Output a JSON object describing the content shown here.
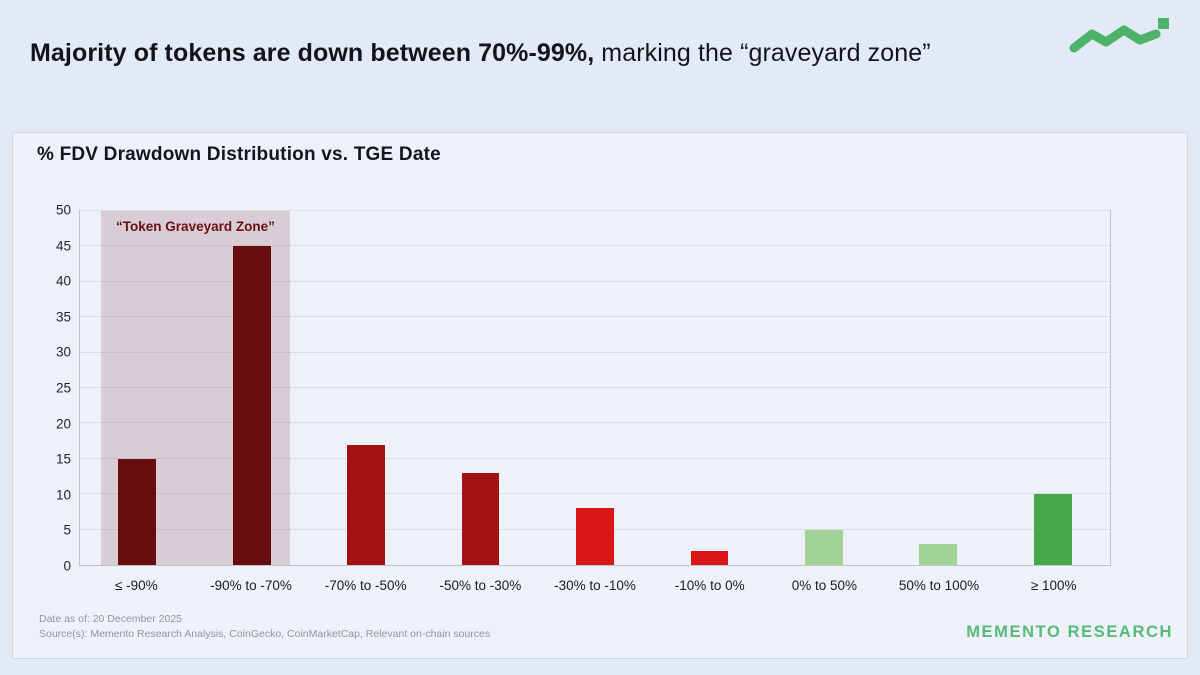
{
  "page": {
    "title_bold": "Majority of tokens are down between 70%-99%,",
    "title_regular": " marking the “graveyard zone”"
  },
  "logo": {
    "icon": "zigzag-line-with-square",
    "color": "#4db36b"
  },
  "chart_data": {
    "type": "bar",
    "title": "% FDV Drawdown Distribution vs. TGE Date",
    "categories": [
      "≤ -90%",
      "-90% to -70%",
      "-70% to -50%",
      "-50% to -30%",
      "-30% to -10%",
      "-10% to 0%",
      "0% to 50%",
      "50% to 100%",
      "≥ 100%"
    ],
    "values": [
      15,
      45,
      17,
      13,
      8,
      2,
      5,
      3,
      10
    ],
    "bar_colors": [
      "#670d0d",
      "#670d0d",
      "#a31212",
      "#a31212",
      "#d91515",
      "#d91515",
      "#a3d394",
      "#a3d394",
      "#45a84b"
    ],
    "xlabel": "",
    "ylabel": "",
    "ylim": [
      0,
      50
    ],
    "ytick_step": 5,
    "grid": "horizontal",
    "legend": "none",
    "annotation_zone": {
      "label": "“Token Graveyard Zone”",
      "covers_categories": [
        0,
        1
      ],
      "fill": "rgba(168, 106, 122, 0.28)",
      "label_color": "#6b1114"
    }
  },
  "footer": {
    "date_note": "Date as of: 20 December 2025",
    "source_note": "Source(s): Memento Research Analysis, CoinGecko, CoinMarketCap, Relevant on-chain sources",
    "brand": "MEMENTO RESEARCH",
    "brand_color": "#57ba7b"
  }
}
